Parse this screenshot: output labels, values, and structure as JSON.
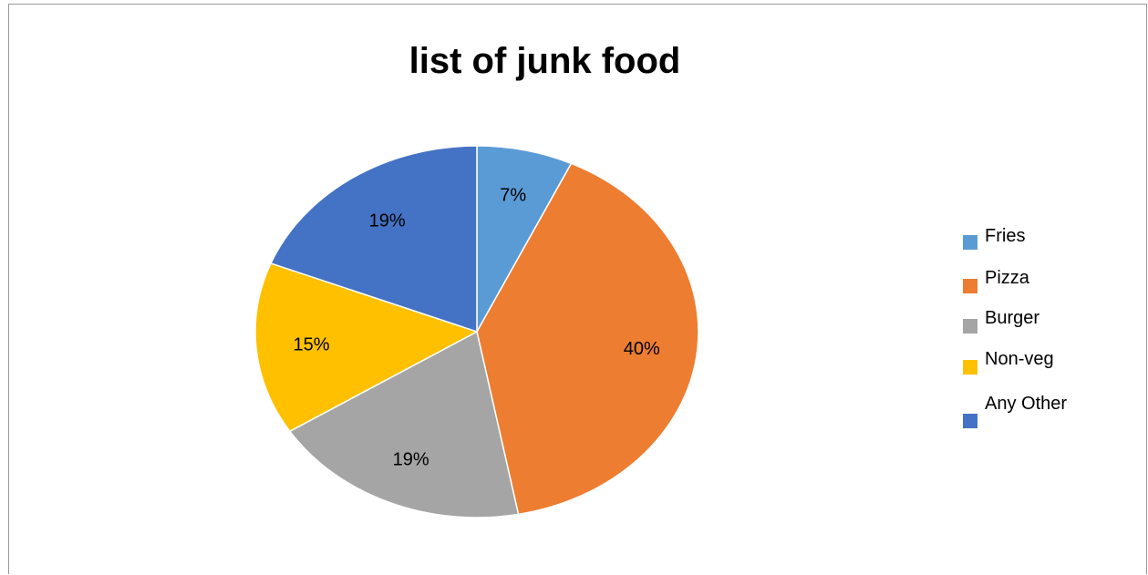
{
  "chart_data": {
    "type": "pie",
    "title": "list of junk food",
    "categories": [
      "Fries",
      "Pizza",
      "Burger",
      "Non-veg",
      "Any Other"
    ],
    "values": [
      7,
      40,
      19,
      15,
      19
    ],
    "unit": "%",
    "data_labels": [
      "7%",
      "40%",
      "19%",
      "15%",
      "19%"
    ],
    "colors": [
      "#5B9BD5",
      "#ED7D31",
      "#A5A5A5",
      "#FFC000",
      "#4472C4"
    ],
    "legend_placement": "right",
    "start_angle": "12 o'clock",
    "direction": "clockwise"
  }
}
